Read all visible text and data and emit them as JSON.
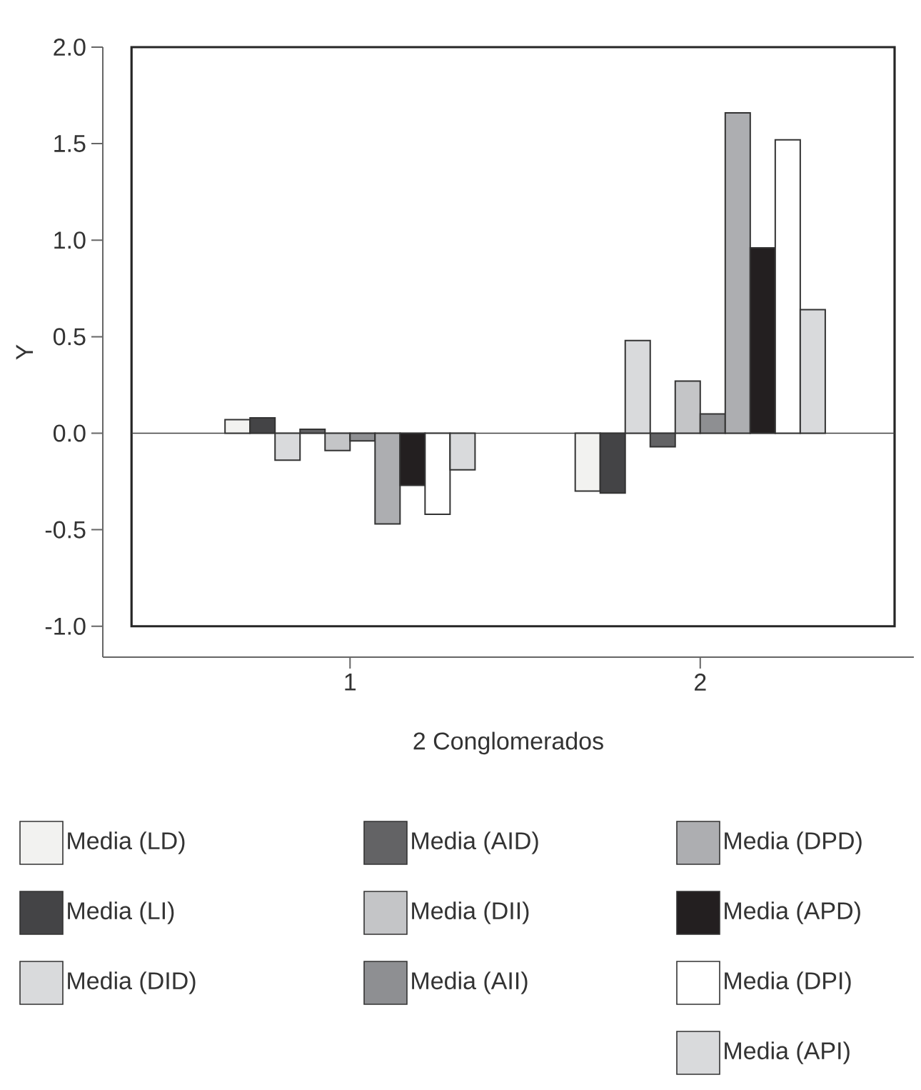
{
  "chart_data": {
    "type": "bar",
    "xlabel": "2 Conglomerados",
    "ylabel": "Y",
    "categories": [
      "1",
      "2"
    ],
    "series": [
      {
        "name": "Media (LD)",
        "color": "#f2f2f0",
        "values": [
          0.07,
          -0.3
        ]
      },
      {
        "name": "Media (LI)",
        "color": "#444446",
        "values": [
          0.08,
          -0.31
        ]
      },
      {
        "name": "Media (DID)",
        "color": "#d9dadc",
        "values": [
          -0.14,
          0.48
        ]
      },
      {
        "name": "Media (AID)",
        "color": "#636365",
        "values": [
          0.02,
          -0.07
        ]
      },
      {
        "name": "Media (DII)",
        "color": "#c4c5c7",
        "values": [
          -0.09,
          0.27
        ]
      },
      {
        "name": "Media (AII)",
        "color": "#8e8f92",
        "values": [
          -0.04,
          0.1
        ]
      },
      {
        "name": "Media (DPD)",
        "color": "#adaeb1",
        "values": [
          -0.47,
          1.66
        ]
      },
      {
        "name": "Media (APD)",
        "color": "#231f20",
        "values": [
          -0.27,
          0.96
        ]
      },
      {
        "name": "Media (DPI)",
        "color": "#ffffff",
        "values": [
          -0.42,
          1.52
        ]
      },
      {
        "name": "Media (API)",
        "color": "#d9dadc",
        "values": [
          -0.19,
          0.64
        ]
      }
    ],
    "ylim": [
      -1.16,
      2.0
    ],
    "yticks": [
      {
        "value": -1.0,
        "label": "-1.0"
      },
      {
        "value": -0.5,
        "label": "-0.5"
      },
      {
        "value": 0.0,
        "label": "0.0"
      },
      {
        "value": 0.5,
        "label": "0.5"
      },
      {
        "value": 1.0,
        "label": "1.0"
      },
      {
        "value": 1.5,
        "label": "1.5"
      },
      {
        "value": 2.0,
        "label": "2.0"
      }
    ],
    "ref_lines": [
      {
        "axis": "y",
        "value": 0
      }
    ],
    "grid": false,
    "legend": "bottom"
  }
}
